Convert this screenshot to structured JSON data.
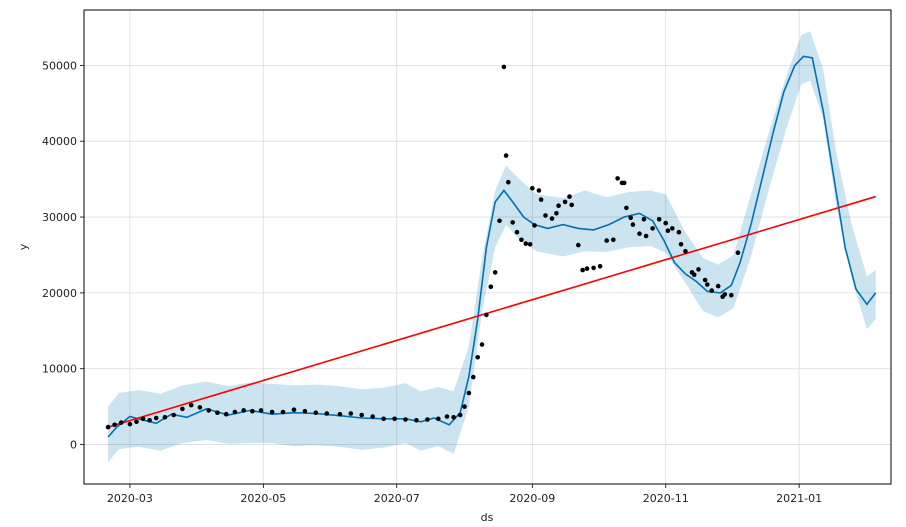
{
  "chart_data": {
    "type": "line",
    "title": "",
    "xlabel": "ds",
    "ylabel": "y",
    "x_ticks": [
      "2020-03-01",
      "2020-05-01",
      "2020-07-01",
      "2020-09-01",
      "2020-11-01",
      "2021-01-01"
    ],
    "x_tick_labels": [
      "2020-03",
      "2020-05",
      "2020-07",
      "2020-09",
      "2020-11",
      "2021-01"
    ],
    "y_ticks": [
      0,
      10000,
      20000,
      30000,
      40000,
      50000
    ],
    "y_tick_labels": [
      "0",
      "10000",
      "20000",
      "30000",
      "40000",
      "50000"
    ],
    "xlim": [
      "2020-02-09",
      "2021-02-12"
    ],
    "ylim": [
      -5200,
      57300
    ],
    "grid": true,
    "colors": {
      "forecast": "#0072B2",
      "band": "#0072B2",
      "trend": "#ff0000",
      "points": "#000000"
    },
    "series": [
      {
        "role": "forecast_yhat",
        "style": "line",
        "x": [
          "2020-02-20",
          "2020-02-24",
          "2020-03-01",
          "2020-03-06",
          "2020-03-13",
          "2020-03-20",
          "2020-03-27",
          "2020-04-05",
          "2020-04-15",
          "2020-04-25",
          "2020-05-05",
          "2020-05-15",
          "2020-05-25",
          "2020-06-05",
          "2020-06-15",
          "2020-06-25",
          "2020-07-05",
          "2020-07-12",
          "2020-07-18",
          "2020-07-25",
          "2020-07-30",
          "2020-08-03",
          "2020-08-07",
          "2020-08-11",
          "2020-08-15",
          "2020-08-19",
          "2020-08-23",
          "2020-08-28",
          "2020-09-02",
          "2020-09-08",
          "2020-09-15",
          "2020-09-22",
          "2020-09-29",
          "2020-10-06",
          "2020-10-13",
          "2020-10-20",
          "2020-10-26",
          "2020-10-31",
          "2020-11-05",
          "2020-11-10",
          "2020-11-15",
          "2020-11-20",
          "2020-11-26",
          "2020-12-01",
          "2020-12-05",
          "2020-12-10",
          "2020-12-15",
          "2020-12-20",
          "2020-12-25",
          "2020-12-30",
          "2021-01-03",
          "2021-01-07",
          "2021-01-12",
          "2021-01-17",
          "2021-01-22",
          "2021-01-27",
          "2021-02-01",
          "2021-02-05"
        ],
        "y": [
          1000,
          2300,
          3700,
          3300,
          2800,
          4000,
          3600,
          4700,
          3900,
          4500,
          4000,
          4200,
          4100,
          3800,
          3500,
          3400,
          3400,
          3000,
          3500,
          2600,
          4200,
          9000,
          16500,
          26000,
          32000,
          33500,
          32000,
          30000,
          29000,
          28500,
          29000,
          28500,
          28300,
          29000,
          30000,
          30500,
          29500,
          27000,
          24000,
          22500,
          21500,
          20200,
          20000,
          21000,
          24000,
          29000,
          35000,
          41000,
          46500,
          50000,
          51200,
          51000,
          44000,
          35000,
          26000,
          20500,
          18500,
          20000
        ]
      },
      {
        "role": "uncertainty_upper",
        "style": "band",
        "x": [
          "2020-02-20",
          "2020-02-25",
          "2020-03-05",
          "2020-03-15",
          "2020-03-25",
          "2020-04-05",
          "2020-04-15",
          "2020-04-25",
          "2020-05-05",
          "2020-05-15",
          "2020-05-25",
          "2020-06-05",
          "2020-06-15",
          "2020-06-25",
          "2020-07-05",
          "2020-07-12",
          "2020-07-20",
          "2020-07-27",
          "2020-08-03",
          "2020-08-09",
          "2020-08-15",
          "2020-08-20",
          "2020-08-26",
          "2020-09-03",
          "2020-09-15",
          "2020-09-25",
          "2020-10-05",
          "2020-10-15",
          "2020-10-25",
          "2020-11-01",
          "2020-11-10",
          "2020-11-18",
          "2020-11-25",
          "2020-12-02",
          "2020-12-10",
          "2020-12-18",
          "2020-12-26",
          "2021-01-02",
          "2021-01-06",
          "2021-01-12",
          "2021-01-18",
          "2021-01-25",
          "2021-02-01",
          "2021-02-05"
        ],
        "y": [
          5000,
          6800,
          7200,
          6700,
          7800,
          8300,
          7700,
          8200,
          8000,
          7800,
          7900,
          7700,
          7300,
          7500,
          8100,
          7000,
          7600,
          7000,
          13000,
          24500,
          33500,
          36800,
          35000,
          33000,
          32500,
          33500,
          32600,
          33300,
          33500,
          33000,
          28000,
          24600,
          23700,
          25000,
          33000,
          41000,
          48500,
          54000,
          54500,
          49500,
          38500,
          29000,
          22200,
          23000
        ]
      },
      {
        "role": "uncertainty_lower",
        "style": "band",
        "x": [
          "2020-02-20",
          "2020-02-25",
          "2020-03-05",
          "2020-03-15",
          "2020-03-25",
          "2020-04-05",
          "2020-04-15",
          "2020-04-25",
          "2020-05-05",
          "2020-05-15",
          "2020-05-25",
          "2020-06-05",
          "2020-06-15",
          "2020-06-25",
          "2020-07-05",
          "2020-07-12",
          "2020-07-20",
          "2020-07-27",
          "2020-08-03",
          "2020-08-09",
          "2020-08-15",
          "2020-08-20",
          "2020-08-26",
          "2020-09-03",
          "2020-09-15",
          "2020-09-25",
          "2020-10-05",
          "2020-10-15",
          "2020-10-25",
          "2020-11-01",
          "2020-11-10",
          "2020-11-18",
          "2020-11-25",
          "2020-12-02",
          "2020-12-10",
          "2020-12-18",
          "2020-12-26",
          "2021-01-02",
          "2021-01-06",
          "2021-01-12",
          "2021-01-18",
          "2021-01-25",
          "2021-02-01",
          "2021-02-05"
        ],
        "y": [
          -2300,
          -600,
          -300,
          -800,
          200,
          600,
          100,
          200,
          200,
          -200,
          -100,
          -300,
          -700,
          -400,
          200,
          -800,
          -200,
          -1200,
          5000,
          17500,
          26000,
          29000,
          27000,
          25500,
          24800,
          25500,
          25400,
          26000,
          26200,
          25300,
          21300,
          17600,
          16800,
          18000,
          24800,
          33500,
          41500,
          47500,
          48000,
          43000,
          31500,
          22000,
          15200,
          16500
        ]
      },
      {
        "role": "trend_changepoints",
        "style": "line",
        "x": [
          "2020-02-20",
          "2021-02-05"
        ],
        "y": [
          2300,
          32700
        ]
      },
      {
        "role": "actual",
        "style": "scatter",
        "x": [
          "2020-02-20",
          "2020-02-23",
          "2020-02-26",
          "2020-03-01",
          "2020-03-04",
          "2020-03-07",
          "2020-03-10",
          "2020-03-13",
          "2020-03-17",
          "2020-03-21",
          "2020-03-25",
          "2020-03-29",
          "2020-04-02",
          "2020-04-06",
          "2020-04-10",
          "2020-04-14",
          "2020-04-18",
          "2020-04-22",
          "2020-04-26",
          "2020-04-30",
          "2020-05-05",
          "2020-05-10",
          "2020-05-15",
          "2020-05-20",
          "2020-05-25",
          "2020-05-30",
          "2020-06-05",
          "2020-06-10",
          "2020-06-15",
          "2020-06-20",
          "2020-06-25",
          "2020-06-30",
          "2020-07-05",
          "2020-07-10",
          "2020-07-15",
          "2020-07-20",
          "2020-07-24",
          "2020-07-27",
          "2020-07-30",
          "2020-08-01",
          "2020-08-03",
          "2020-08-05",
          "2020-08-07",
          "2020-08-09",
          "2020-08-11",
          "2020-08-13",
          "2020-08-15",
          "2020-08-17",
          "2020-08-19",
          "2020-08-21",
          "2020-08-23",
          "2020-08-25",
          "2020-08-27",
          "2020-08-29",
          "2020-08-31",
          "2020-09-02",
          "2020-09-04",
          "2020-09-07",
          "2020-09-10",
          "2020-09-13",
          "2020-09-16",
          "2020-09-19",
          "2020-09-22",
          "2020-09-24",
          "2020-09-26",
          "2020-09-29",
          "2020-10-02",
          "2020-10-05",
          "2020-10-08",
          "2020-10-10",
          "2020-10-12",
          "2020-10-14",
          "2020-10-17",
          "2020-10-20",
          "2020-10-23",
          "2020-10-26",
          "2020-10-29",
          "2020-11-01",
          "2020-11-04",
          "2020-11-07",
          "2020-11-10",
          "2020-11-13",
          "2020-11-16",
          "2020-11-19",
          "2020-11-22",
          "2020-11-25",
          "2020-11-28",
          "2020-12-01",
          "2020-12-04",
          "2020-08-20",
          "2020-09-01",
          "2020-09-05",
          "2020-09-12",
          "2020-09-18",
          "2020-10-13",
          "2020-10-16",
          "2020-10-22",
          "2020-11-02",
          "2020-11-08",
          "2020-11-14",
          "2020-11-20",
          "2020-11-27"
        ],
        "y": [
          2300,
          2600,
          2900,
          2700,
          3000,
          3400,
          3200,
          3500,
          3600,
          3900,
          4700,
          5200,
          4900,
          4500,
          4200,
          4000,
          4300,
          4500,
          4400,
          4500,
          4300,
          4300,
          4600,
          4400,
          4200,
          4100,
          4000,
          4100,
          3900,
          3700,
          3400,
          3400,
          3300,
          3200,
          3300,
          3400,
          3700,
          3600,
          3900,
          5000,
          6800,
          8900,
          11500,
          13200,
          17100,
          20800,
          22700,
          29500,
          49800,
          34600,
          29300,
          28000,
          27000,
          26500,
          26400,
          28900,
          33500,
          30200,
          29800,
          31500,
          32000,
          31600,
          26300,
          23000,
          23200,
          23300,
          23500,
          26900,
          27000,
          35100,
          34500,
          31200,
          29000,
          27800,
          27500,
          28500,
          29700,
          29200,
          28500,
          28000,
          25500,
          22700,
          23100,
          21700,
          20300,
          20900,
          19800,
          19700,
          25300,
          38100,
          33800,
          32300,
          30500,
          32700,
          34500,
          29900,
          29700,
          28200,
          26400,
          22400,
          21100,
          19500
        ]
      }
    ]
  }
}
